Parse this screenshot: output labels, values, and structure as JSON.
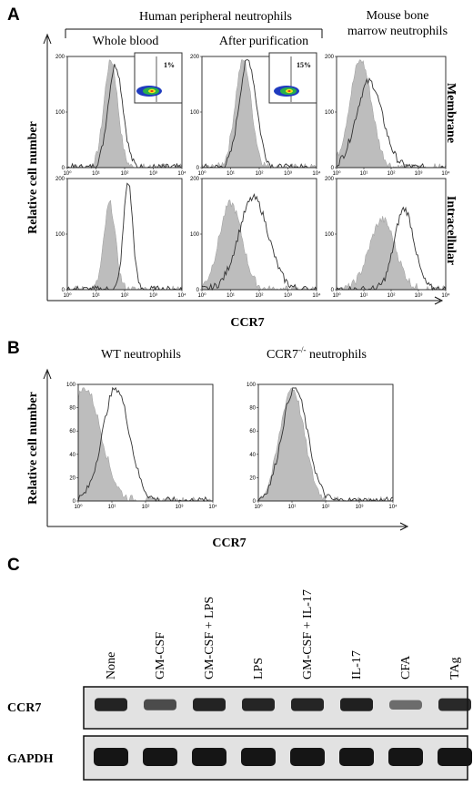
{
  "panels": {
    "a": {
      "letter": "A",
      "group_header": "Human peripheral neutrophils",
      "col_whole": "Whole blood",
      "col_purif": "After purification",
      "col_mouse_line1": "Mouse bone",
      "col_mouse_line2": "marrow neutrophils",
      "row_membrane": "Membrane",
      "row_intracellular": "Intracellular",
      "ylabel": "Relative cell number",
      "xlabel": "CCR7",
      "inset_whole": "1%",
      "inset_purif": "15%",
      "y_ticks": [
        "0",
        "100",
        "200"
      ],
      "x_ticks": [
        "10⁰",
        "10¹",
        "10²",
        "10³",
        "10⁴"
      ]
    },
    "b": {
      "letter": "B",
      "title_wt": "WT neutrophils",
      "title_ko_base": "CCR7",
      "title_ko_sup": "-/-",
      "title_ko_rest": " neutrophils",
      "ylabel": "Relative cell number",
      "xlabel": "CCR7",
      "y_ticks": [
        "0",
        "20",
        "40",
        "60",
        "80",
        "100"
      ],
      "x_ticks": [
        "10⁰",
        "10¹",
        "10²",
        "10³",
        "10⁴"
      ]
    },
    "c": {
      "letter": "C",
      "lanes": [
        "None",
        "GM-CSF",
        "GM-CSF + LPS",
        "LPS",
        "GM-CSF + IL-17",
        "IL-17",
        "CFA",
        "TAg"
      ],
      "row_ccr7": "CCR7",
      "row_gapdh": "GAPDH",
      "ccr7_intensity": [
        0.9,
        0.6,
        0.9,
        0.88,
        0.88,
        0.92,
        0.35,
        0.85
      ],
      "gapdh_intensity": [
        1,
        1,
        1,
        1,
        1,
        1,
        1,
        1
      ]
    }
  },
  "colors": {
    "fill": "#bdbdbd",
    "line": "#333333",
    "band": "#151515"
  }
}
